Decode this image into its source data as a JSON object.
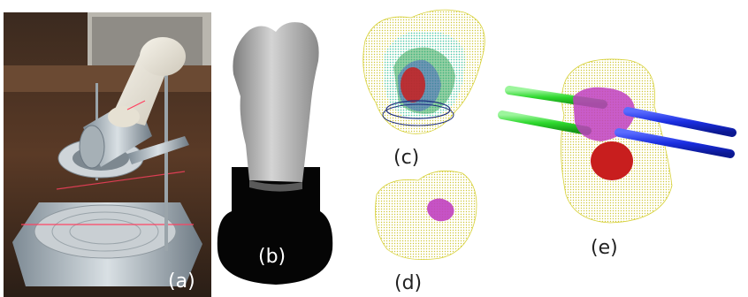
{
  "figure": {
    "panels": [
      {
        "id": "a",
        "label": "(a)"
      },
      {
        "id": "b",
        "label": "(b)"
      },
      {
        "id": "c",
        "label": "(c)"
      },
      {
        "id": "d",
        "label": "(d)"
      },
      {
        "id": "e",
        "label": "(e)"
      }
    ]
  },
  "colors": {
    "mesh_yellow": "#d8d23a",
    "tumor_red": "#c81e1e",
    "magenta": "#c040c0",
    "pin_green": "#3ee03e",
    "pin_blue": "#1a2ee0",
    "cyan_mesh": "#2ec8c8"
  }
}
